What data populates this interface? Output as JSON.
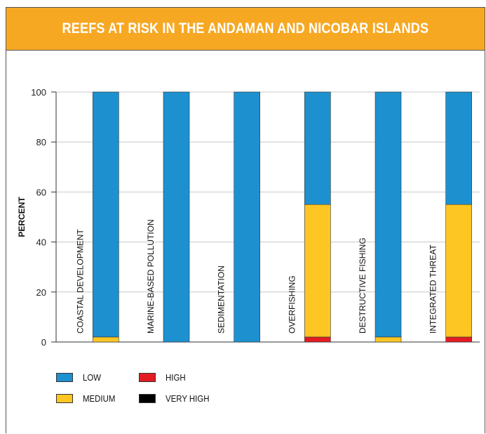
{
  "header": {
    "title": "REEFS AT RISK IN THE ANDAMAN AND NICOBAR ISLANDS"
  },
  "colors": {
    "header_bg": "#F7A823",
    "low": "#1D91D0",
    "medium": "#FDC623",
    "high": "#E31B23",
    "very_high": "#000000",
    "grid": "#c8c8c8"
  },
  "chart_data": {
    "type": "bar",
    "stacked": true,
    "ylabel": "PERCENT",
    "ylim": [
      0,
      100
    ],
    "yticks": [
      0,
      20,
      40,
      60,
      80,
      100
    ],
    "grid": true,
    "legend_placement": "bottom-left",
    "categories": [
      "COASTAL DEVELOPMENT",
      "MARINE-BASED POLLUTION",
      "SEDIMENTATION",
      "OVERFISHING",
      "DESTRUCTIVE FISHING",
      "INTEGRATED THREAT"
    ],
    "series": [
      {
        "name": "LOW",
        "values": [
          98,
          100,
          100,
          45,
          98,
          45
        ]
      },
      {
        "name": "MEDIUM",
        "values": [
          2,
          0,
          0,
          53,
          2,
          53
        ]
      },
      {
        "name": "HIGH",
        "values": [
          0,
          0,
          0,
          2,
          0,
          2
        ]
      },
      {
        "name": "VERY HIGH",
        "values": [
          0,
          0,
          0,
          0,
          0,
          0
        ]
      }
    ]
  },
  "legend": [
    {
      "label": "LOW",
      "color": "#1D91D0"
    },
    {
      "label": "HIGH",
      "color": "#E31B23"
    },
    {
      "label": "MEDIUM",
      "color": "#FDC623"
    },
    {
      "label": "VERY HIGH",
      "color": "#000000"
    }
  ]
}
